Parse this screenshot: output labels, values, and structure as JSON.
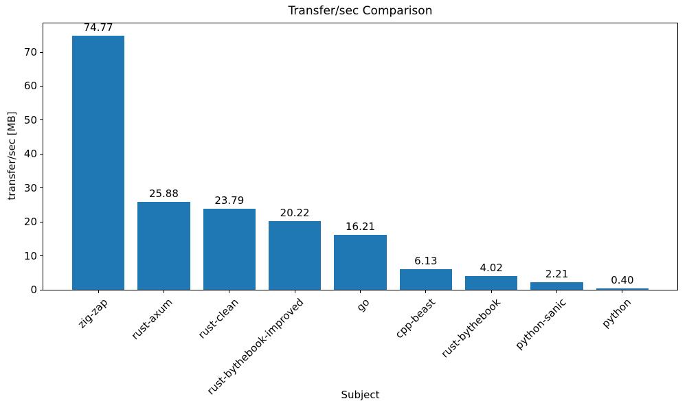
{
  "chart_data": {
    "type": "bar",
    "title": "Transfer/sec Comparison",
    "xlabel": "Subject",
    "ylabel": "transfer/sec [MB]",
    "categories": [
      "zig-zap",
      "rust-axum",
      "rust-clean",
      "rust-bythebook-improved",
      "go",
      "cpp-beast",
      "rust-bythebook",
      "python-sanic",
      "python"
    ],
    "values": [
      74.77,
      25.88,
      23.79,
      20.22,
      16.21,
      6.13,
      4.02,
      2.21,
      0.4
    ],
    "value_labels": [
      "74.77",
      "25.88",
      "23.79",
      "20.22",
      "16.21",
      "6.13",
      "4.02",
      "2.21",
      "0.40"
    ],
    "bar_color": "#1f77b4",
    "text_color": "#000000",
    "background_color": "#ffffff",
    "ylim": [
      0,
      78.5
    ],
    "yticks": [
      0,
      10,
      20,
      30,
      40,
      50,
      60,
      70
    ],
    "x_tick_rotation_deg": 45,
    "grid": false,
    "legend": false
  }
}
